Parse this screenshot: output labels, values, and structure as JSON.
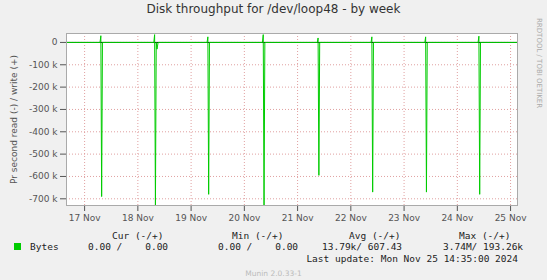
{
  "chart_data": {
    "type": "line",
    "title": "Disk throughput for /dev/loop48 - by week",
    "y_label": "Pr second read (-) / write (+)",
    "x": [
      16.66,
      17.29,
      17.305,
      17.32,
      17.335,
      18.3,
      18.315,
      18.33,
      18.345,
      18.36,
      18.38,
      19.3,
      19.315,
      19.33,
      19.345,
      20.34,
      20.355,
      20.37,
      20.385,
      21.37,
      21.385,
      21.4,
      21.415,
      22.38,
      22.395,
      22.41,
      22.425,
      23.39,
      23.405,
      23.42,
      23.435,
      24.39,
      24.405,
      24.42,
      24.435,
      25.13
    ],
    "series": [
      {
        "name": "Bytes",
        "color": "#00cc00",
        "values": [
          0,
          0,
          30000,
          -690000,
          0,
          0,
          35000,
          -730000,
          0,
          -30000,
          0,
          0,
          25000,
          -680000,
          0,
          0,
          35000,
          -730000,
          0,
          0,
          20000,
          -595000,
          0,
          0,
          25000,
          -670000,
          0,
          0,
          25000,
          -670000,
          0,
          0,
          28000,
          -680000,
          0,
          0
        ]
      }
    ],
    "xlim": [
      16.66,
      25.13
    ],
    "xticks": [
      {
        "value": 17,
        "label": "17 Nov"
      },
      {
        "value": 18,
        "label": "18 Nov"
      },
      {
        "value": 19,
        "label": "19 Nov"
      },
      {
        "value": 20,
        "label": "20 Nov"
      },
      {
        "value": 21,
        "label": "21 Nov"
      },
      {
        "value": 22,
        "label": "22 Nov"
      },
      {
        "value": 23,
        "label": "23 Nov"
      },
      {
        "value": 24,
        "label": "24 Nov"
      },
      {
        "value": 25,
        "label": "25 Nov"
      }
    ],
    "ylim": [
      -730000,
      40000
    ],
    "yticks": [
      0,
      {
        "value": -100000,
        "label": "-100 k"
      },
      {
        "value": -200000,
        "label": "-200 k"
      },
      {
        "value": -300000,
        "label": "-300 k"
      },
      {
        "value": -400000,
        "label": "-400 k"
      },
      {
        "value": -500000,
        "label": "-500 k"
      },
      {
        "value": -600000,
        "label": "-600 k"
      },
      {
        "value": -700000,
        "label": "-700 k"
      }
    ],
    "grid": true,
    "stats_table": {
      "headers": [
        "Cur (-/+)",
        "Min (-/+)",
        "Avg (-/+)",
        "Max (-/+)"
      ],
      "rows": [
        {
          "name": "Bytes",
          "cells": [
            "0.00 /    0.00",
            "0.00 /    0.00",
            "13.79k/ 607.43",
            "3.74M/ 193.26k"
          ]
        }
      ]
    },
    "footer": "Last update: Mon Nov 25 14:35:00 2024",
    "side_text": "RRDTOOL / TOBI OETIKER",
    "credit": "Munin 2.0.33-1"
  }
}
